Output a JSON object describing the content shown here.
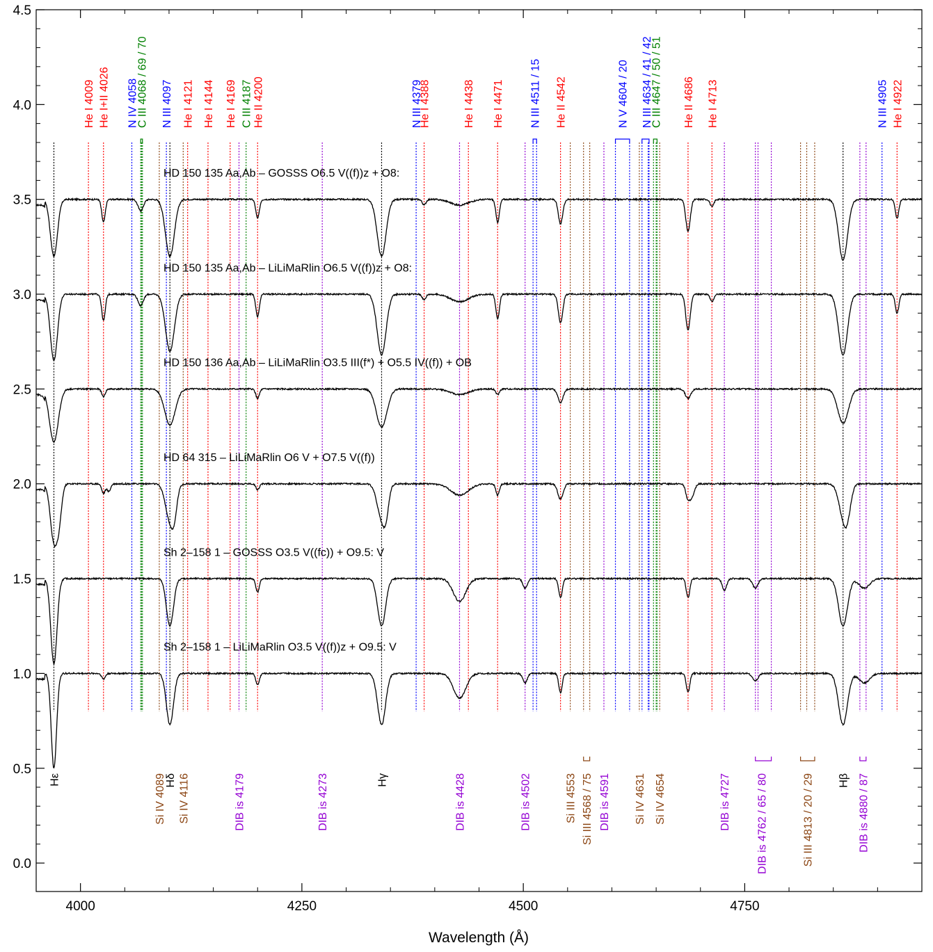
{
  "chart_data": {
    "type": "line",
    "xlabel": "Wavelength (Å)",
    "ylabel": "",
    "xlim": [
      3950,
      4950
    ],
    "ylim": [
      -0.15,
      4.5
    ],
    "x_ticks": [
      4000,
      4250,
      4500,
      4750
    ],
    "y_ticks": [
      0.0,
      0.5,
      1.0,
      1.5,
      2.0,
      2.5,
      3.0,
      3.5,
      4.0,
      4.5
    ],
    "x_tick_labels": [
      "4000",
      "4250",
      "4500",
      "4750"
    ],
    "y_tick_labels": [
      "0.0",
      "0.5",
      "1.0",
      "1.5",
      "2.0",
      "2.5",
      "3.0",
      "3.5",
      "4.0",
      "4.5"
    ],
    "series": [
      {
        "name": "HD 150 135 Aa,Ab – GOSSS   O6.5 V((f))z + O8:",
        "offset": 3.5,
        "lines": [
          {
            "w": 3970,
            "d": 0.3,
            "s": 4
          },
          {
            "w": 4026,
            "d": 0.12,
            "s": 2
          },
          {
            "w": 4068,
            "d": 0.06,
            "s": 3
          },
          {
            "w": 4101,
            "d": 0.3,
            "s": 5
          },
          {
            "w": 4200,
            "d": 0.1,
            "s": 2
          },
          {
            "w": 4340,
            "d": 0.3,
            "s": 5
          },
          {
            "w": 4388,
            "d": 0.03,
            "s": 2
          },
          {
            "w": 4428,
            "d": 0.03,
            "s": 10
          },
          {
            "w": 4471,
            "d": 0.12,
            "s": 2
          },
          {
            "w": 4542,
            "d": 0.13,
            "s": 2.5
          },
          {
            "w": 4686,
            "d": 0.17,
            "s": 2.5
          },
          {
            "w": 4713,
            "d": 0.04,
            "s": 2
          },
          {
            "w": 4861,
            "d": 0.32,
            "s": 5
          },
          {
            "w": 4922,
            "d": 0.1,
            "s": 2
          }
        ]
      },
      {
        "name": "HD 150 135 Aa,Ab – LiLiMaRlin   O6.5 V((f))z + O8:",
        "offset": 3.0,
        "lines": [
          {
            "w": 3970,
            "d": 0.35,
            "s": 4
          },
          {
            "w": 4026,
            "d": 0.14,
            "s": 2
          },
          {
            "w": 4068,
            "d": 0.06,
            "s": 3
          },
          {
            "w": 4101,
            "d": 0.3,
            "s": 5
          },
          {
            "w": 4200,
            "d": 0.12,
            "s": 2
          },
          {
            "w": 4340,
            "d": 0.32,
            "s": 5
          },
          {
            "w": 4388,
            "d": 0.03,
            "s": 2
          },
          {
            "w": 4428,
            "d": 0.04,
            "s": 10
          },
          {
            "w": 4471,
            "d": 0.13,
            "s": 2
          },
          {
            "w": 4542,
            "d": 0.15,
            "s": 2.5
          },
          {
            "w": 4686,
            "d": 0.19,
            "s": 2.5
          },
          {
            "w": 4713,
            "d": 0.04,
            "s": 2
          },
          {
            "w": 4861,
            "d": 0.32,
            "s": 5
          },
          {
            "w": 4922,
            "d": 0.1,
            "s": 2
          }
        ]
      },
      {
        "name": "HD 150 136 Aa,Ab – LiLiMaRlin   O3.5 III(f*) + O5.5 IV((f)) + OB",
        "offset": 2.5,
        "lines": [
          {
            "w": 3970,
            "d": 0.28,
            "s": 5
          },
          {
            "w": 4026,
            "d": 0.04,
            "s": 2
          },
          {
            "w": 4101,
            "d": 0.19,
            "s": 6
          },
          {
            "w": 4200,
            "d": 0.05,
            "s": 2
          },
          {
            "w": 4340,
            "d": 0.2,
            "s": 6
          },
          {
            "w": 4428,
            "d": 0.03,
            "s": 10
          },
          {
            "w": 4471,
            "d": 0.03,
            "s": 2
          },
          {
            "w": 4542,
            "d": 0.07,
            "s": 3
          },
          {
            "w": 4686,
            "d": 0.05,
            "s": 3
          },
          {
            "w": 4861,
            "d": 0.18,
            "s": 6
          }
        ]
      },
      {
        "name": "HD 64 315 – LiLiMaRlin   O6 V + O7.5 V((f))",
        "offset": 2.0,
        "lines": [
          {
            "w": 3970,
            "d": 0.3,
            "s": 4
          },
          {
            "w": 3976,
            "d": 0.15,
            "s": 3
          },
          {
            "w": 4026,
            "d": 0.05,
            "s": 2
          },
          {
            "w": 4032,
            "d": 0.04,
            "s": 2
          },
          {
            "w": 4101,
            "d": 0.19,
            "s": 5
          },
          {
            "w": 4106,
            "d": 0.1,
            "s": 3
          },
          {
            "w": 4200,
            "d": 0.03,
            "s": 2
          },
          {
            "w": 4340,
            "d": 0.18,
            "s": 5
          },
          {
            "w": 4345,
            "d": 0.1,
            "s": 3
          },
          {
            "w": 4428,
            "d": 0.06,
            "s": 10
          },
          {
            "w": 4471,
            "d": 0.06,
            "s": 2
          },
          {
            "w": 4542,
            "d": 0.08,
            "s": 3
          },
          {
            "w": 4686,
            "d": 0.08,
            "s": 2.5
          },
          {
            "w": 4691,
            "d": 0.06,
            "s": 2.5
          },
          {
            "w": 4861,
            "d": 0.15,
            "s": 5
          },
          {
            "w": 4866,
            "d": 0.12,
            "s": 4
          }
        ]
      },
      {
        "name": "Sh 2–158 1 – GOSSS   O3.5 V((fc)) + O9.5: V",
        "offset": 1.5,
        "lines": [
          {
            "w": 3970,
            "d": 0.45,
            "s": 3.5
          },
          {
            "w": 4101,
            "d": 0.25,
            "s": 4
          },
          {
            "w": 4200,
            "d": 0.07,
            "s": 2
          },
          {
            "w": 4340,
            "d": 0.25,
            "s": 4.5
          },
          {
            "w": 4428,
            "d": 0.12,
            "s": 7
          },
          {
            "w": 4502,
            "d": 0.05,
            "s": 2.5
          },
          {
            "w": 4542,
            "d": 0.1,
            "s": 2
          },
          {
            "w": 4686,
            "d": 0.1,
            "s": 2
          },
          {
            "w": 4727,
            "d": 0.06,
            "s": 2.5
          },
          {
            "w": 4762,
            "d": 0.05,
            "s": 3
          },
          {
            "w": 4861,
            "d": 0.25,
            "s": 5
          },
          {
            "w": 4885,
            "d": 0.05,
            "s": 6
          }
        ]
      },
      {
        "name": "Sh 2–158 1 – LiLiMaRlin   O3.5 V((f))z + O9.5: V",
        "offset": 1.0,
        "lines": [
          {
            "w": 3970,
            "d": 0.5,
            "s": 3
          },
          {
            "w": 4026,
            "d": 0.03,
            "s": 2
          },
          {
            "w": 4101,
            "d": 0.27,
            "s": 4
          },
          {
            "w": 4200,
            "d": 0.06,
            "s": 2
          },
          {
            "w": 4340,
            "d": 0.27,
            "s": 4.5
          },
          {
            "w": 4428,
            "d": 0.13,
            "s": 7
          },
          {
            "w": 4502,
            "d": 0.05,
            "s": 2.5
          },
          {
            "w": 4542,
            "d": 0.1,
            "s": 2
          },
          {
            "w": 4686,
            "d": 0.1,
            "s": 2
          },
          {
            "w": 4762,
            "d": 0.04,
            "s": 3
          },
          {
            "w": 4861,
            "d": 0.27,
            "s": 5
          },
          {
            "w": 4885,
            "d": 0.05,
            "s": 6
          }
        ]
      }
    ],
    "top_labels": [
      {
        "text": "He I 4009",
        "color": "#ff0000",
        "lines": [
          4009
        ]
      },
      {
        "text": "He I+II 4026",
        "color": "#ff0000",
        "lines": [
          4026
        ]
      },
      {
        "text": "N IV 4058",
        "color": "#0000ff",
        "lines": [
          4058
        ]
      },
      {
        "text": "C III 4068 / 69 / 70",
        "color": "#008000",
        "lines": [
          4068,
          4069,
          4070
        ]
      },
      {
        "text": "N III 4097",
        "color": "#0000ff",
        "lines": [
          4097
        ]
      },
      {
        "text": "He I 4121",
        "color": "#ff0000",
        "lines": [
          4121
        ]
      },
      {
        "text": "He I 4144",
        "color": "#ff0000",
        "lines": [
          4144
        ]
      },
      {
        "text": "He I 4169",
        "color": "#ff0000",
        "lines": [
          4169
        ]
      },
      {
        "text": "C III 4187",
        "color": "#008000",
        "lines": [
          4187
        ]
      },
      {
        "text": "He II 4200",
        "color": "#ff0000",
        "lines": [
          4200
        ]
      },
      {
        "text": "N III 4379",
        "color": "#0000ff",
        "lines": [
          4379
        ]
      },
      {
        "text": "He I 4388",
        "color": "#ff0000",
        "lines": [
          4388
        ]
      },
      {
        "text": "He I 4438",
        "color": "#ff0000",
        "lines": [
          4438
        ]
      },
      {
        "text": "He I 4471",
        "color": "#ff0000",
        "lines": [
          4471
        ]
      },
      {
        "text": "N III 4511 / 15",
        "color": "#0000ff",
        "lines": [
          4511,
          4515
        ]
      },
      {
        "text": "He II 4542",
        "color": "#ff0000",
        "lines": [
          4542
        ]
      },
      {
        "text": "N V 4604 / 20",
        "color": "#0000ff",
        "lines": [
          4604,
          4620
        ]
      },
      {
        "text": "N III 4634 / 41 / 42",
        "color": "#0000ff",
        "lines": [
          4634,
          4641,
          4642
        ]
      },
      {
        "text": "C III 4647 / 50 / 51",
        "color": "#008000",
        "lines": [
          4647,
          4650,
          4651
        ]
      },
      {
        "text": "He II 4686",
        "color": "#ff0000",
        "lines": [
          4686
        ]
      },
      {
        "text": "He I 4713",
        "color": "#ff0000",
        "lines": [
          4713
        ]
      },
      {
        "text": "N III 4905",
        "color": "#0000ff",
        "lines": [
          4905
        ]
      },
      {
        "text": "He I 4922",
        "color": "#ff0000",
        "lines": [
          4922
        ]
      }
    ],
    "bottom_labels": [
      {
        "text": "Si IV 4089",
        "color": "#8b4513",
        "lines": [
          4089
        ]
      },
      {
        "text": "Si IV 4116",
        "color": "#8b4513",
        "lines": [
          4116
        ]
      },
      {
        "text": "DIB is 4179",
        "color": "#9400d3",
        "lines": [
          4179
        ]
      },
      {
        "text": "DIB is 4273",
        "color": "#9400d3",
        "lines": [
          4273
        ]
      },
      {
        "text": "DIB is 4428",
        "color": "#9400d3",
        "lines": [
          4428
        ]
      },
      {
        "text": "DIB is 4502",
        "color": "#9400d3",
        "lines": [
          4502
        ]
      },
      {
        "text": "Si III 4553",
        "color": "#8b4513",
        "lines": [
          4553
        ]
      },
      {
        "text": "Si III 4568 / 75",
        "color": "#8b4513",
        "lines": [
          4568,
          4575
        ]
      },
      {
        "text": "DIB is 4591",
        "color": "#9400d3",
        "lines": [
          4591
        ]
      },
      {
        "text": "Si IV 4631",
        "color": "#8b4513",
        "lines": [
          4631
        ]
      },
      {
        "text": "Si IV 4654",
        "color": "#8b4513",
        "lines": [
          4654
        ]
      },
      {
        "text": "DIB is 4727",
        "color": "#9400d3",
        "lines": [
          4727
        ]
      },
      {
        "text": "DIB is 4762 / 65 / 80",
        "color": "#9400d3",
        "lines": [
          4762,
          4765,
          4780
        ]
      },
      {
        "text": "Si III 4813 / 20 / 29",
        "color": "#8b4513",
        "lines": [
          4813,
          4820,
          4829
        ]
      },
      {
        "text": "DIB is 4880 / 87",
        "color": "#9400d3",
        "lines": [
          4880,
          4887
        ]
      }
    ],
    "balmer_labels": [
      {
        "text": "Hε",
        "color": "#000000",
        "lines": [
          3970
        ]
      },
      {
        "text": "Hδ",
        "color": "#000000",
        "lines": [
          4101
        ]
      },
      {
        "text": "Hγ",
        "color": "#000000",
        "lines": [
          4340
        ]
      },
      {
        "text": "Hβ",
        "color": "#000000",
        "lines": [
          4861
        ]
      }
    ],
    "grid": false,
    "legend": "none"
  }
}
